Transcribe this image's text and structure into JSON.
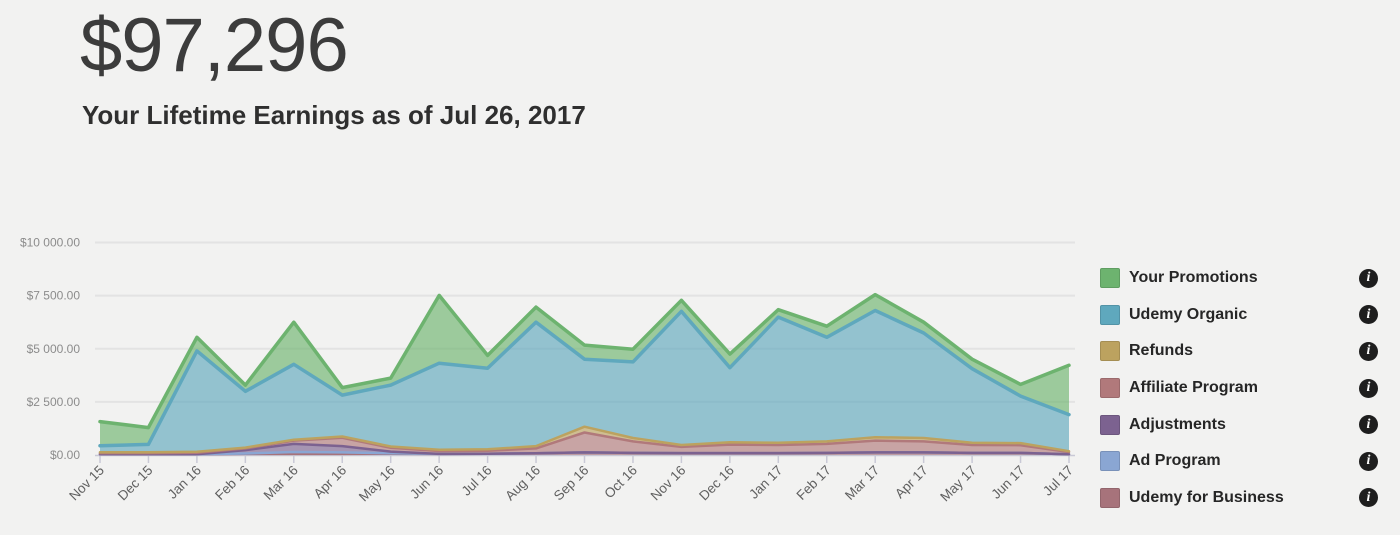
{
  "header": {
    "lifetime_earnings": "$97,296",
    "subtitle": "Your Lifetime Earnings as of Jul 26, 2017"
  },
  "legend": {
    "items": [
      {
        "label": "Your Promotions",
        "color": "#6DB36F",
        "info_icon": "info-circle"
      },
      {
        "label": "Udemy Organic",
        "color": "#5FA8BD",
        "info_icon": "info-circle"
      },
      {
        "label": "Refunds",
        "color": "#BCA25F",
        "info_icon": "info-circle"
      },
      {
        "label": "Affiliate Program",
        "color": "#B1797B",
        "info_icon": "info-circle"
      },
      {
        "label": "Adjustments",
        "color": "#7C6290",
        "info_icon": "info-circle"
      },
      {
        "label": "Ad Program",
        "color": "#8AA6D3",
        "info_icon": "info-circle"
      },
      {
        "label": "Udemy for Business",
        "color": "#A7737B",
        "info_icon": "info-circle"
      }
    ]
  },
  "chart_data": {
    "type": "area",
    "stacked": true,
    "grid": "horizontal-only",
    "legend_position": "right",
    "categories": [
      "Nov 15",
      "Dec 15",
      "Jan 16",
      "Feb 16",
      "Mar 16",
      "Apr 16",
      "May 16",
      "Jun 16",
      "Jul 16",
      "Aug 16",
      "Sep 16",
      "Oct 16",
      "Nov 16",
      "Dec 16",
      "Jan 17",
      "Feb 17",
      "Mar 17",
      "Apr 17",
      "May 17",
      "Jun 17",
      "Jul 17"
    ],
    "y_axis": {
      "min": 0,
      "max": 10000,
      "ticks": [
        {
          "value": 0,
          "label": "$0.00"
        },
        {
          "value": 2500,
          "label": "$2 500.00"
        },
        {
          "value": 5000,
          "label": "$5 000.00"
        },
        {
          "value": 7500,
          "label": "$7 500.00"
        },
        {
          "value": 10000,
          "label": "$10 000.00"
        }
      ]
    },
    "series": [
      {
        "name": "Udemy for Business",
        "color": "#A7737B",
        "line_width": 2.5,
        "values": [
          40,
          40,
          40,
          50,
          50,
          50,
          60,
          50,
          60,
          80,
          120,
          100,
          90,
          90,
          90,
          100,
          120,
          120,
          100,
          100,
          40
        ]
      },
      {
        "name": "Ad Program",
        "color": "#8AA6D3",
        "line_width": 2.5,
        "values": [
          0,
          0,
          0,
          20,
          90,
          70,
          20,
          0,
          0,
          0,
          0,
          0,
          0,
          0,
          0,
          0,
          0,
          0,
          0,
          0,
          0
        ]
      },
      {
        "name": "Adjustments",
        "color": "#7C6290",
        "line_width": 2.5,
        "values": [
          0,
          0,
          0,
          160,
          380,
          300,
          80,
          0,
          0,
          0,
          0,
          0,
          0,
          0,
          0,
          0,
          0,
          0,
          0,
          0,
          0
        ]
      },
      {
        "name": "Affiliate Program",
        "color": "#B1797B",
        "line_width": 2.5,
        "values": [
          50,
          50,
          70,
          80,
          160,
          390,
          180,
          140,
          140,
          230,
          940,
          540,
          290,
          400,
          380,
          420,
          560,
          520,
          370,
          360,
          100
        ]
      },
      {
        "name": "Refunds",
        "color": "#BCA25F",
        "line_width": 2.5,
        "values": [
          40,
          40,
          40,
          40,
          40,
          60,
          60,
          60,
          70,
          110,
          270,
          160,
          90,
          110,
          110,
          120,
          160,
          160,
          110,
          100,
          40
        ]
      },
      {
        "name": "Udemy Organic",
        "color": "#5FA8BD",
        "line_width": 3.5,
        "values": [
          310,
          370,
          4750,
          2650,
          3550,
          1950,
          2890,
          4070,
          3815,
          5830,
          3180,
          3580,
          6290,
          3510,
          5910,
          4900,
          5960,
          4940,
          3480,
          2210,
          1720
        ]
      },
      {
        "name": "Your Promotions",
        "color": "#6DB36F",
        "line_width": 3.5,
        "values": [
          1130,
          790,
          640,
          290,
          1980,
          350,
          330,
          3190,
          600,
          710,
          660,
          600,
          520,
          640,
          350,
          520,
          750,
          510,
          450,
          550,
          2320
        ]
      }
    ],
    "title": "",
    "xlabel": "",
    "ylabel": ""
  },
  "chart_style": {
    "grid_color": "#e3e3e3",
    "axis_color": "#c9c9d6",
    "y_label_color": "#8c8c8c",
    "x_label_color": "#606060",
    "fill_opacity": "0.65"
  }
}
